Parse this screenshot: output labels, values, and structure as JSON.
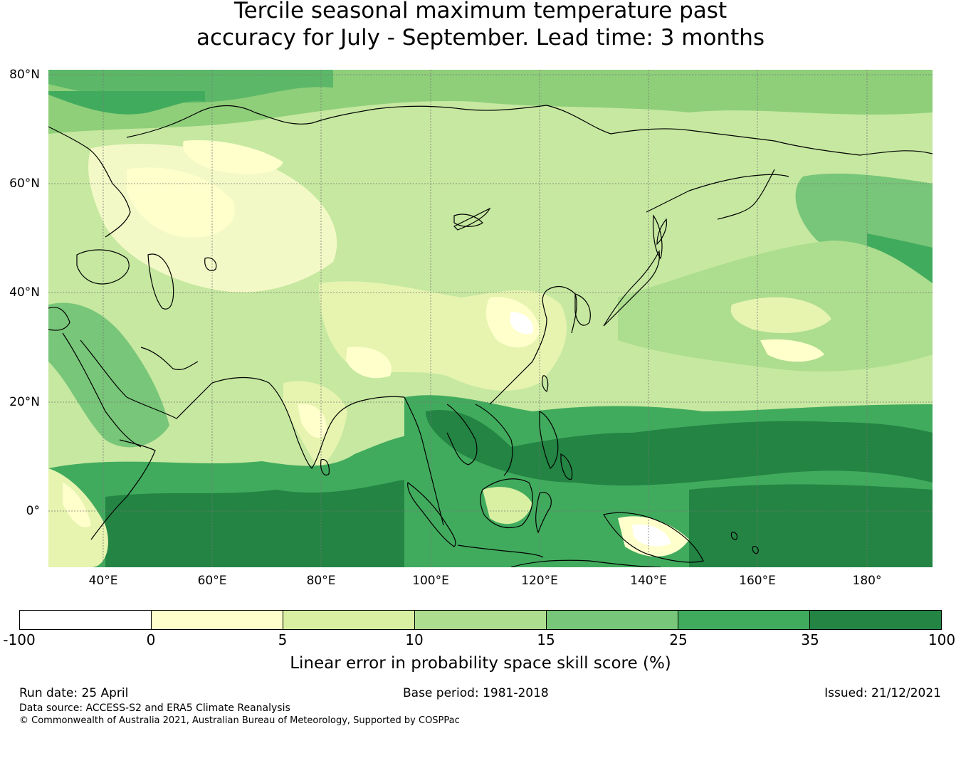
{
  "title": {
    "line1": "Tercile seasonal maximum temperature past",
    "line2": "accuracy for July - September. Lead time: 3 months"
  },
  "map": {
    "lat_labels": [
      "80°N",
      "60°N",
      "40°N",
      "20°N",
      "0°"
    ],
    "lon_labels": [
      "40°E",
      "60°E",
      "80°E",
      "100°E",
      "120°E",
      "140°E",
      "160°E",
      "180°"
    ],
    "extent": {
      "lon_min": 30,
      "lon_max": 192,
      "lat_min": -10,
      "lat_max": 80
    }
  },
  "colorbar": {
    "label": "Linear error in probability space skill score (%)",
    "ticks": [
      "-100",
      "0",
      "5",
      "10",
      "15",
      "25",
      "35",
      "100"
    ],
    "colors": [
      "#ffffff",
      "#ffffcc",
      "#d9f0a3",
      "#addd8e",
      "#78c679",
      "#41ab5d",
      "#238443"
    ]
  },
  "footer": {
    "run_date": "Run date: 25 April",
    "base_period": "Base period: 1981-2018",
    "issued": "Issued: 21/12/2021",
    "data_source": "Data source: ACCESS-S2 and ERA5 Climate Reanalysis",
    "copyright": "© Commonwealth of Australia 2021, Australian Bureau of Meteorology, Supported by COSPPac"
  }
}
